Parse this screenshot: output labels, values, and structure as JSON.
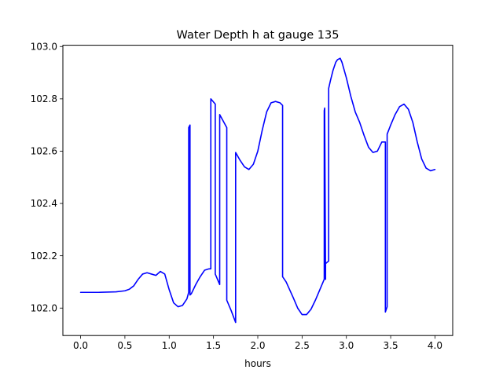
{
  "chart_data": {
    "type": "line",
    "title": "Water Depth h at gauge 135",
    "xlabel": "hours",
    "ylabel": "",
    "xlim": [
      -0.2,
      4.2
    ],
    "ylim": [
      101.895,
      103.005
    ],
    "xticks": [
      0.0,
      0.5,
      1.0,
      1.5,
      2.0,
      2.5,
      3.0,
      3.5,
      4.0
    ],
    "xtick_labels": [
      "0.0",
      "0.5",
      "1.0",
      "1.5",
      "2.0",
      "2.5",
      "3.0",
      "3.5",
      "4.0"
    ],
    "yticks": [
      102.0,
      102.2,
      102.4,
      102.6,
      102.8,
      103.0
    ],
    "ytick_labels": [
      "102.0",
      "102.2",
      "102.4",
      "102.6",
      "102.8",
      "103.0"
    ],
    "grid": false,
    "series": [
      {
        "color": "#0000ff",
        "x": [
          0.0,
          0.2,
          0.4,
          0.5,
          0.55,
          0.6,
          0.65,
          0.7,
          0.75,
          0.8,
          0.85,
          0.9,
          0.95,
          1.0,
          1.05,
          1.1,
          1.15,
          1.2,
          1.22,
          1.22,
          1.235,
          1.235,
          1.25,
          1.3,
          1.35,
          1.4,
          1.45,
          1.47,
          1.47,
          1.52,
          1.52,
          1.57,
          1.57,
          1.65,
          1.65,
          1.7,
          1.75,
          1.75,
          1.8,
          1.85,
          1.9,
          1.95,
          2.0,
          2.05,
          2.1,
          2.15,
          2.2,
          2.25,
          2.28,
          2.28,
          2.32,
          2.4,
          2.45,
          2.5,
          2.55,
          2.6,
          2.65,
          2.7,
          2.75,
          2.75,
          2.755,
          2.765,
          2.765,
          2.8,
          2.8,
          2.82,
          2.85,
          2.88,
          2.9,
          2.93,
          2.95,
          3.0,
          3.05,
          3.1,
          3.15,
          3.2,
          3.25,
          3.3,
          3.35,
          3.4,
          3.44,
          3.44,
          3.46,
          3.46,
          3.5,
          3.55,
          3.6,
          3.65,
          3.7,
          3.75,
          3.8,
          3.85,
          3.9,
          3.95,
          4.0
        ],
        "y": [
          102.06,
          102.06,
          102.062,
          102.066,
          102.072,
          102.085,
          102.11,
          102.13,
          102.135,
          102.13,
          102.125,
          102.14,
          102.13,
          102.07,
          102.02,
          102.005,
          102.01,
          102.035,
          102.06,
          102.69,
          102.7,
          102.05,
          102.055,
          102.09,
          102.12,
          102.145,
          102.15,
          102.15,
          102.8,
          102.78,
          102.13,
          102.09,
          102.74,
          102.69,
          102.03,
          101.99,
          101.945,
          102.595,
          102.565,
          102.54,
          102.53,
          102.55,
          102.6,
          102.68,
          102.75,
          102.785,
          102.79,
          102.785,
          102.775,
          102.12,
          102.1,
          102.04,
          102.0,
          101.975,
          101.975,
          101.995,
          102.03,
          102.07,
          102.11,
          102.755,
          102.765,
          102.11,
          102.17,
          102.18,
          102.84,
          102.87,
          102.91,
          102.94,
          102.95,
          102.955,
          102.94,
          102.88,
          102.81,
          102.75,
          102.71,
          102.66,
          102.615,
          102.595,
          102.6,
          102.635,
          102.635,
          101.985,
          102.005,
          102.665,
          102.7,
          102.74,
          102.77,
          102.78,
          102.76,
          102.71,
          102.635,
          102.57,
          102.535,
          102.525,
          102.53
        ]
      }
    ]
  }
}
